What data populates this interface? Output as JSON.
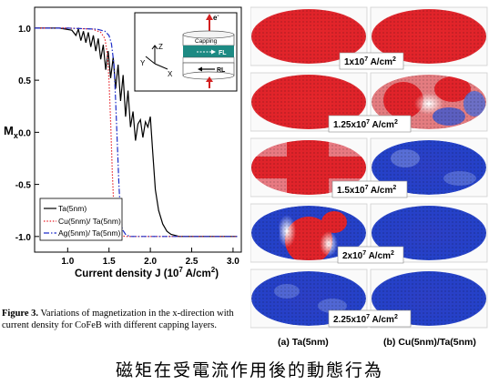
{
  "chart_data": {
    "type": "line",
    "title": "",
    "xlabel": "Current density J (10",
    "xlabel_sup": "7",
    "xlabel_tail": " A/cm",
    "xlabel_sup2": "2",
    "xlabel_end": ")",
    "ylabel": "M",
    "ylabel_sub": "x",
    "xlim": [
      0.6,
      3.1
    ],
    "ylim": [
      -1.15,
      1.2
    ],
    "xticks": [
      "1.0",
      "1.5",
      "2.0",
      "2.5",
      "3.0"
    ],
    "xtick_values": [
      1.0,
      1.5,
      2.0,
      2.5,
      3.0
    ],
    "yticks": [
      "1.0",
      "0.5",
      "0.0",
      "-0.5",
      "-1.0"
    ],
    "ytick_values": [
      1.0,
      0.5,
      0.0,
      -0.5,
      -1.0
    ],
    "legend_position": "bottom-left",
    "series": [
      {
        "name": "Ta(5nm)",
        "color": "#000000",
        "style": "solid",
        "x": [
          0.6,
          0.9,
          1.05,
          1.1,
          1.13,
          1.16,
          1.19,
          1.22,
          1.25,
          1.28,
          1.31,
          1.34,
          1.37,
          1.4,
          1.43,
          1.46,
          1.49,
          1.52,
          1.55,
          1.58,
          1.61,
          1.64,
          1.67,
          1.7,
          1.73,
          1.76,
          1.79,
          1.82,
          1.85,
          1.88,
          1.91,
          1.94,
          1.97,
          2.0,
          2.03,
          2.06,
          2.1,
          2.15,
          2.2,
          2.25,
          2.35,
          2.5,
          3.05
        ],
        "y": [
          1.0,
          1.0,
          0.98,
          0.93,
          0.99,
          0.88,
          0.97,
          0.86,
          0.96,
          0.82,
          0.93,
          0.78,
          0.9,
          0.7,
          0.84,
          0.6,
          0.78,
          0.52,
          0.72,
          0.42,
          0.65,
          0.3,
          0.55,
          0.15,
          0.4,
          0.05,
          0.2,
          -0.08,
          0.08,
          0.12,
          -0.05,
          0.1,
          0.05,
          0.15,
          -0.2,
          -0.55,
          -0.75,
          -0.88,
          -0.95,
          -0.98,
          -1.0,
          -1.0,
          -1.0
        ]
      },
      {
        "name": "Cu(5nm)/ Ta(5nm)",
        "color": "#e8232a",
        "style": "dotted",
        "x": [
          0.6,
          1.0,
          1.3,
          1.4,
          1.45,
          1.48,
          1.5,
          1.52,
          1.54,
          1.56,
          1.58,
          1.6,
          1.63,
          1.7,
          3.05
        ],
        "y": [
          1.0,
          1.0,
          0.99,
          0.96,
          0.9,
          0.75,
          0.5,
          0.1,
          -0.4,
          -0.75,
          -0.9,
          -0.96,
          -0.99,
          -1.0,
          -1.0
        ]
      },
      {
        "name": "Ag(5nm)/ Ta(5nm)",
        "color": "#1f2fc9",
        "style": "dashdot",
        "x": [
          0.6,
          1.0,
          1.35,
          1.45,
          1.5,
          1.53,
          1.56,
          1.58,
          1.6,
          1.62,
          1.64,
          1.66,
          1.7,
          1.75,
          3.05
        ],
        "y": [
          1.0,
          1.0,
          0.99,
          0.97,
          0.93,
          0.85,
          0.65,
          0.3,
          -0.1,
          -0.5,
          -0.8,
          -0.93,
          -0.98,
          -1.0,
          -1.0
        ]
      }
    ]
  },
  "inset": {
    "capping_label": "Capping",
    "fl_label": "FL",
    "rl_label": "RL",
    "electron_label": "e",
    "electron_sup": "-",
    "axis_z": "Z",
    "axis_y": "Y",
    "axis_x": "X",
    "layer_color": "#1d8a83"
  },
  "caption": {
    "bold": "Figure 3.",
    "text": " Variations of magnetization in the x-direction with current density for CoFeB with different capping layers."
  },
  "maps": {
    "labels": [
      {
        "value": "1x10",
        "sup": "7",
        "unit": " A/cm",
        "sup2": "2"
      },
      {
        "value": "1.25x10",
        "sup": "7",
        "unit": " A/cm",
        "sup2": "2"
      },
      {
        "value": "1.5x10",
        "sup": "7",
        "unit": " A/cm",
        "sup2": "2"
      },
      {
        "value": "2x10",
        "sup": "7",
        "unit": " A/cm",
        "sup2": "2"
      },
      {
        "value": "2.25x10",
        "sup": "7",
        "unit": " A/cm",
        "sup2": "2"
      }
    ],
    "column_a": "(a) Ta(5nm)",
    "column_b": "(b) Cu(5nm)/Ta(5nm)",
    "red": "#e0232a",
    "blue": "#2441c8"
  },
  "bottom_title": "磁矩在受電流作用後的動態行為"
}
